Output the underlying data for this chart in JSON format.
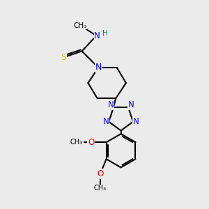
{
  "bg_color": "#ebebeb",
  "bond_color": "#000000",
  "N_color": "#0000ff",
  "S_color": "#cccc00",
  "O_color": "#ff0000",
  "lw": 1.5,
  "figsize": [
    3.0,
    3.0
  ],
  "dpi": 100,
  "xlim": [
    0,
    10
  ],
  "ylim": [
    0,
    10
  ]
}
